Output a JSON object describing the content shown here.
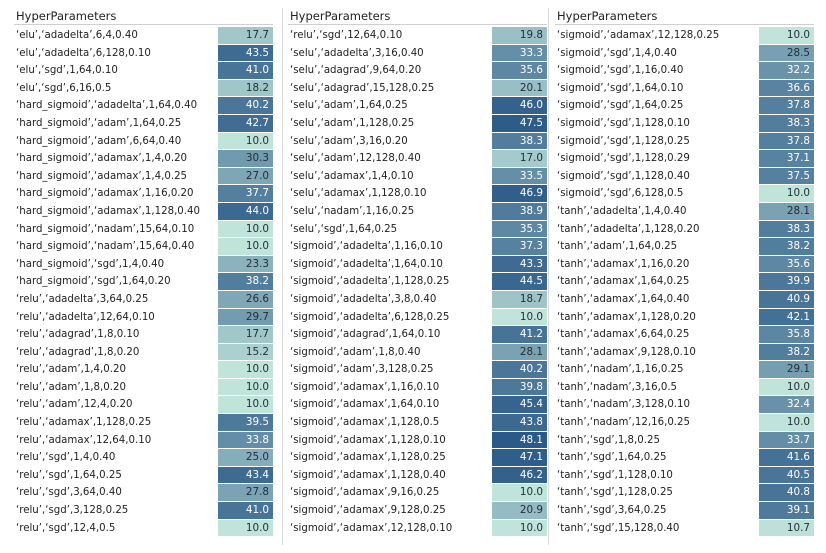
{
  "chart_data": {
    "type": "table",
    "header": "HyperParameters",
    "color_scale": {
      "min": 10.0,
      "max": 48.1,
      "low_color": "#c0e3da",
      "high_color": "#2c5a88"
    },
    "panels": [
      {
        "rows": [
          {
            "label": "‘elu’,‘adadelta’,6,4,0.40",
            "value": "17.7"
          },
          {
            "label": "‘elu’,‘adadelta’,6,128,0.10",
            "value": "43.5"
          },
          {
            "label": "‘elu’,‘sgd’,1,64,0.10",
            "value": "41.0"
          },
          {
            "label": "‘elu’,‘sgd’,6,16,0.5",
            "value": "18.2"
          },
          {
            "label": "‘hard_sigmoid’,‘adadelta’,1,64,0.40",
            "value": "40.2"
          },
          {
            "label": "‘hard_sigmoid’,‘adam’,1,64,0.25",
            "value": "42.7"
          },
          {
            "label": "‘hard_sigmoid’,‘adam’,6,64,0.40",
            "value": "10.0"
          },
          {
            "label": "‘hard_sigmoid’,‘adamax’,1,4,0.20",
            "value": "30.3"
          },
          {
            "label": "‘hard_sigmoid’,‘adamax’,1,4,0.25",
            "value": "27.0"
          },
          {
            "label": "‘hard_sigmoid’,‘adamax’,1,16,0.20",
            "value": "37.7"
          },
          {
            "label": "‘hard_sigmoid’,‘adamax’,1,128,0.40",
            "value": "44.0"
          },
          {
            "label": "‘hard_sigmoid’,‘nadam’,15,64,0.10",
            "value": "10.0"
          },
          {
            "label": "‘hard_sigmoid’,‘nadam’,15,64,0.40",
            "value": "10.0"
          },
          {
            "label": "‘hard_sigmoid’,‘sgd’,1,4,0.40",
            "value": "23.3"
          },
          {
            "label": "‘hard_sigmoid’,‘sgd’,1,64,0.20",
            "value": "38.2"
          },
          {
            "label": "‘relu’,‘adadelta’,3,64,0.25",
            "value": "26.6"
          },
          {
            "label": "‘relu’,‘adadelta’,12,64,0.10",
            "value": "29.7"
          },
          {
            "label": "‘relu’,‘adagrad’,1,8,0.10",
            "value": "17.7"
          },
          {
            "label": "‘relu’,‘adagrad’,1,8,0.20",
            "value": "15.2"
          },
          {
            "label": "‘relu’,‘adam’,1,4,0.20",
            "value": "10.0"
          },
          {
            "label": "‘relu’,‘adam’,1,8,0.20",
            "value": "10.0"
          },
          {
            "label": "‘relu’,‘adam’,12,4,0.20",
            "value": "10.0"
          },
          {
            "label": "‘relu’,‘adamax’,1,128,0.25",
            "value": "39.5"
          },
          {
            "label": "‘relu’,‘adamax’,12,64,0.10",
            "value": "33.8"
          },
          {
            "label": "‘relu’,‘sgd’,1,4,0.40",
            "value": "25.0"
          },
          {
            "label": "‘relu’,‘sgd’,1,64,0.25",
            "value": "43.4"
          },
          {
            "label": "‘relu’,‘sgd’,3,64,0.40",
            "value": "27.8"
          },
          {
            "label": "‘relu’,‘sgd’,3,128,0.25",
            "value": "41.0"
          },
          {
            "label": "‘relu’,‘sgd’,12,4,0.5",
            "value": "10.0"
          }
        ]
      },
      {
        "rows": [
          {
            "label": "‘relu’,‘sgd’,12,64,0.10",
            "value": "19.8"
          },
          {
            "label": "‘selu’,‘adadelta’,3,16,0.40",
            "value": "33.3"
          },
          {
            "label": "‘selu’,‘adagrad’,9,64,0.20",
            "value": "35.6"
          },
          {
            "label": "‘selu’,‘adagrad’,15,128,0.25",
            "value": "20.1"
          },
          {
            "label": "‘selu’,‘adam’,1,64,0.25",
            "value": "46.0"
          },
          {
            "label": "‘selu’,‘adam’,1,128,0.25",
            "value": "47.5"
          },
          {
            "label": "‘selu’,‘adam’,3,16,0.20",
            "value": "38.3"
          },
          {
            "label": "‘selu’,‘adam’,12,128,0.40",
            "value": "17.0"
          },
          {
            "label": "‘selu’,‘adamax’,1,4,0.10",
            "value": "33.5"
          },
          {
            "label": "‘selu’,‘adamax’,1,128,0.10",
            "value": "46.9"
          },
          {
            "label": "‘selu’,‘nadam’,1,16,0.25",
            "value": "38.9"
          },
          {
            "label": "‘selu’,‘sgd’,1,64,0.25",
            "value": "35.3"
          },
          {
            "label": "‘sigmoid’,‘adadelta’,1,16,0.10",
            "value": "37.3"
          },
          {
            "label": "‘sigmoid’,‘adadelta’,1,64,0.10",
            "value": "43.3"
          },
          {
            "label": "‘sigmoid’,‘adadelta’,1,128,0.25",
            "value": "44.5"
          },
          {
            "label": "‘sigmoid’,‘adadelta’,3,8,0.40",
            "value": "18.7"
          },
          {
            "label": "‘sigmoid’,‘adadelta’,6,128,0.25",
            "value": "10.0"
          },
          {
            "label": "‘sigmoid’,‘adagrad’,1,64,0.10",
            "value": "41.2"
          },
          {
            "label": "‘sigmoid’,‘adam’,1,8,0.40",
            "value": "28.1"
          },
          {
            "label": "‘sigmoid’,‘adam’,3,128,0.25",
            "value": "40.2"
          },
          {
            "label": "‘sigmoid’,‘adamax’,1,16,0.10",
            "value": "39.8"
          },
          {
            "label": "‘sigmoid’,‘adamax’,1,64,0.10",
            "value": "45.4"
          },
          {
            "label": "‘sigmoid’,‘adamax’,1,128,0.5",
            "value": "43.8"
          },
          {
            "label": "‘sigmoid’,‘adamax’,1,128,0.10",
            "value": "48.1"
          },
          {
            "label": "‘sigmoid’,‘adamax’,1,128,0.25",
            "value": "47.1"
          },
          {
            "label": "‘sigmoid’,‘adamax’,1,128,0.40",
            "value": "46.2"
          },
          {
            "label": "‘sigmoid’,‘adamax’,9,16,0.25",
            "value": "10.0"
          },
          {
            "label": "‘sigmoid’,‘adamax’,9,128,0.25",
            "value": "20.9"
          },
          {
            "label": "‘sigmoid’,‘adamax’,12,128,0.10",
            "value": "10.0"
          }
        ]
      },
      {
        "rows": [
          {
            "label": "‘sigmoid’,‘adamax’,12,128,0.25",
            "value": "10.0"
          },
          {
            "label": "‘sigmoid’,‘sgd’,1,4,0.40",
            "value": "28.5"
          },
          {
            "label": "‘sigmoid’,‘sgd’,1,16,0.40",
            "value": "32.2"
          },
          {
            "label": "‘sigmoid’,‘sgd’,1,64,0.10",
            "value": "36.6"
          },
          {
            "label": "‘sigmoid’,‘sgd’,1,64,0.25",
            "value": "37.8"
          },
          {
            "label": "‘sigmoid’,‘sgd’,1,128,0.10",
            "value": "38.3"
          },
          {
            "label": "‘sigmoid’,‘sgd’,1,128,0.25",
            "value": "37.8"
          },
          {
            "label": "‘sigmoid’,‘sgd’,1,128,0.29",
            "value": "37.1"
          },
          {
            "label": "‘sigmoid’,‘sgd’,1,128,0.40",
            "value": "37.5"
          },
          {
            "label": "‘sigmoid’,‘sgd’,6,128,0.5",
            "value": "10.0"
          },
          {
            "label": "‘tanh’,‘adadelta’,1,4,0.40",
            "value": "28.1"
          },
          {
            "label": "‘tanh’,‘adadelta’,1,128,0.20",
            "value": "38.3"
          },
          {
            "label": "‘tanh’,‘adam’,1,64,0.25",
            "value": "38.2"
          },
          {
            "label": "‘tanh’,‘adamax’,1,16,0.20",
            "value": "35.6"
          },
          {
            "label": "‘tanh’,‘adamax’,1,64,0.25",
            "value": "39.9"
          },
          {
            "label": "‘tanh’,‘adamax’,1,64,0.40",
            "value": "40.9"
          },
          {
            "label": "‘tanh’,‘adamax’,1,128,0.20",
            "value": "42.1"
          },
          {
            "label": "‘tanh’,‘adamax’,6,64,0.25",
            "value": "35.8"
          },
          {
            "label": "‘tanh’,‘adamax’,9,128,0.10",
            "value": "38.2"
          },
          {
            "label": "‘tanh’,‘nadam’,1,16,0.25",
            "value": "29.1"
          },
          {
            "label": "‘tanh’,‘nadam’,3,16,0.5",
            "value": "10.0"
          },
          {
            "label": "‘tanh’,‘nadam’,3,128,0.10",
            "value": "32.4"
          },
          {
            "label": "‘tanh’,‘nadam’,12,16,0.25",
            "value": "10.0"
          },
          {
            "label": "‘tanh’,‘sgd’,1,8,0.25",
            "value": "33.7"
          },
          {
            "label": "‘tanh’,‘sgd’,1,64,0.25",
            "value": "41.6"
          },
          {
            "label": "‘tanh’,‘sgd’,1,128,0.10",
            "value": "40.5"
          },
          {
            "label": "‘tanh’,‘sgd’,1,128,0.25",
            "value": "40.8"
          },
          {
            "label": "‘tanh’,‘sgd’,3,64,0.25",
            "value": "39.1"
          },
          {
            "label": "‘tanh’,‘sgd’,15,128,0.40",
            "value": "10.7"
          }
        ]
      }
    ]
  }
}
